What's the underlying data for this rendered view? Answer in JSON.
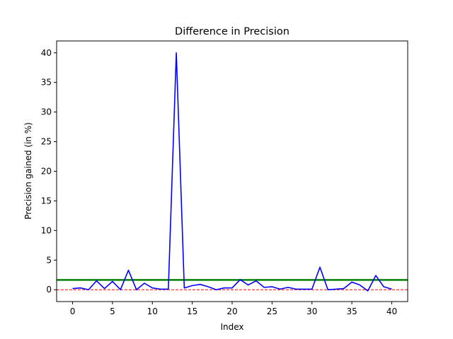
{
  "chart_data": {
    "type": "line",
    "title": "Difference in Precision",
    "xlabel": "Index",
    "ylabel": "Precision gained (in %)",
    "xlim": [
      -2,
      42
    ],
    "ylim": [
      -2,
      42
    ],
    "xticks": [
      0,
      5,
      10,
      15,
      20,
      25,
      30,
      35,
      40
    ],
    "yticks": [
      0,
      5,
      10,
      15,
      20,
      25,
      30,
      35,
      40
    ],
    "grid": false,
    "series": [
      {
        "color": "#0000ff",
        "x": [
          0,
          1,
          2,
          3,
          4,
          5,
          6,
          7,
          8,
          9,
          10,
          11,
          12,
          13,
          14,
          15,
          16,
          17,
          18,
          19,
          20,
          21,
          22,
          23,
          24,
          25,
          26,
          27,
          28,
          29,
          30,
          31,
          32,
          33,
          34,
          35,
          36,
          37,
          38,
          39,
          40
        ],
        "values": [
          0.2,
          0.3,
          0.0,
          1.5,
          0.2,
          1.4,
          0.0,
          3.3,
          0.0,
          1.1,
          0.3,
          0.1,
          0.1,
          40.0,
          0.3,
          0.7,
          0.9,
          0.5,
          0.0,
          0.3,
          0.3,
          1.7,
          0.8,
          1.5,
          0.4,
          0.5,
          0.1,
          0.4,
          0.1,
          0.1,
          0.1,
          3.8,
          0.0,
          0.1,
          0.2,
          1.3,
          0.8,
          -0.2,
          2.4,
          0.5,
          0.1
        ]
      }
    ],
    "reference_lines": [
      {
        "y": 1.65,
        "color": "#008000",
        "style": "solid"
      },
      {
        "y": 0.0,
        "color": "#ff0000",
        "style": "dashed"
      }
    ]
  }
}
